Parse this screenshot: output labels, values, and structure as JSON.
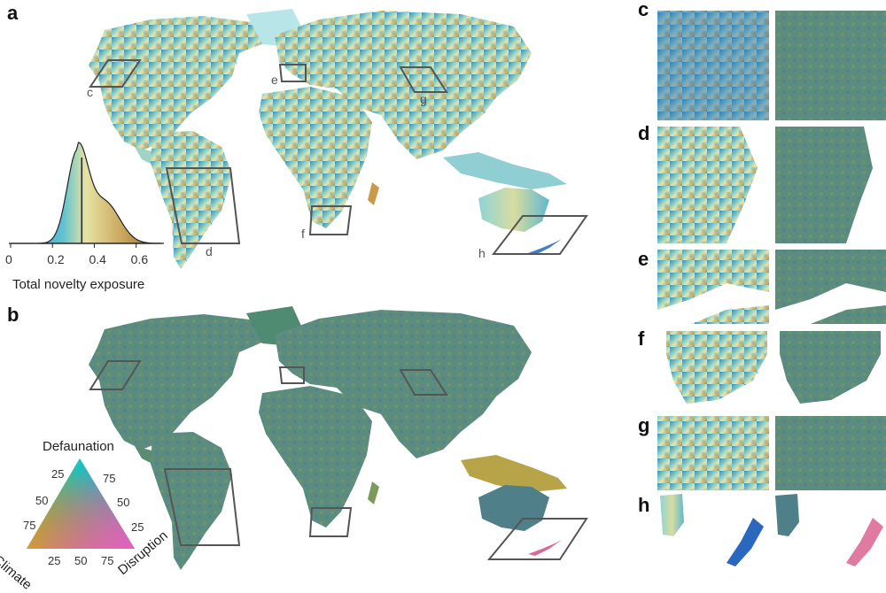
{
  "panels": {
    "a": "a",
    "b": "b",
    "c": "c",
    "d": "d",
    "e": "e",
    "f": "f",
    "g": "g",
    "h": "h"
  },
  "box_labels": {
    "c": "c",
    "d": "d",
    "e": "e",
    "f": "f",
    "g": "g",
    "h": "h"
  },
  "histogram": {
    "xlabel": "Total novelty exposure",
    "xticks": [
      "0",
      "0.2",
      "0.4",
      "0.6"
    ],
    "xtick_values": [
      0,
      0.2,
      0.4,
      0.6
    ],
    "xlim": [
      0,
      0.72
    ],
    "median_line": 0.34,
    "gradient_colors": [
      "#2b8fc9",
      "#5fc3d0",
      "#e6e3a3",
      "#c9a45a",
      "#9a6a2a"
    ]
  },
  "ternary": {
    "top_label": "Defaunation",
    "left_label": "Climate",
    "right_label": "Disruption",
    "left_edge_ticks": [
      "25",
      "50",
      "75"
    ],
    "right_edge_ticks": [
      "75",
      "50",
      "25"
    ],
    "bottom_edge_ticks": [
      "25",
      "50",
      "75"
    ],
    "colors": {
      "defaunation": "#12c8c8",
      "climate": "#c8b400",
      "disruption": "#e85ec8",
      "center": "#7a7a78"
    }
  },
  "colors": {
    "novelty_low": "#2a7fc0",
    "novelty_mid": "#9ad8d6",
    "novelty_high": "#b58a3a",
    "composition_base": "#5b8a78",
    "box_stroke": "#555555"
  }
}
